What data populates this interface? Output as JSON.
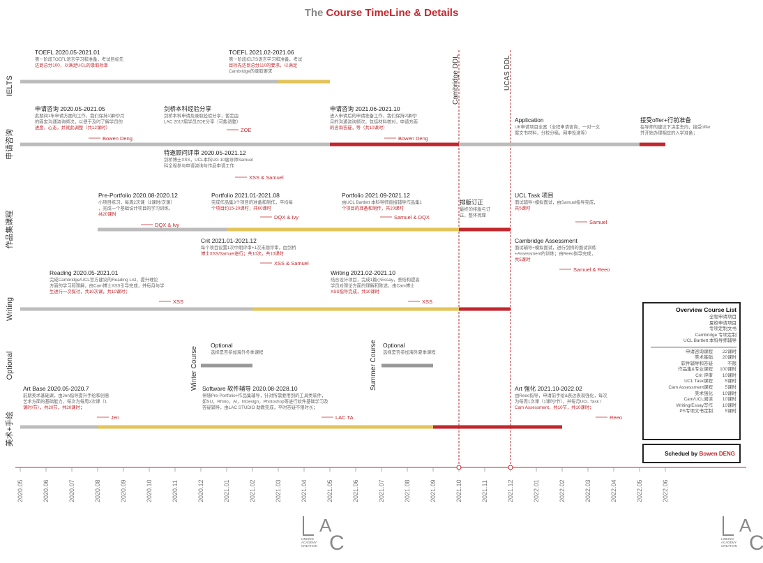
{
  "title": {
    "part1": "The ",
    "part2": "Course TimeLine & Details"
  },
  "chart_data": {
    "type": "gantt",
    "months": [
      "2020.05",
      "2020.06",
      "2020.07",
      "2020.08",
      "2020.09",
      "2020.10",
      "2020.11",
      "2020.12",
      "2021.01",
      "2021.02",
      "2021.03",
      "2021.04",
      "2021.05",
      "2021.06",
      "2021.07",
      "2021.08",
      "2021.09",
      "2021.10",
      "2021.11",
      "2021.12",
      "2022.01",
      "2022.02",
      "2022.03",
      "2022.04",
      "2022.05",
      "2022.06"
    ],
    "deadlines": [
      {
        "label": "Cambridge DDL",
        "date": "2021.10"
      },
      {
        "label": "UCAS DDL",
        "date": "2021.12"
      }
    ],
    "rows": [
      {
        "label": "IELTS",
        "segments": [
          {
            "start": "2020.05",
            "end": "2021.03",
            "color": "#bcbcbc"
          },
          {
            "start": "2021.03",
            "end": "2021.05",
            "color": "#e3c45a"
          }
        ]
      },
      {
        "label": "申请咨询",
        "segments": [
          {
            "start": "2020.05",
            "end": "2021.05",
            "color": "#bcbcbc"
          },
          {
            "start": "2021.05",
            "end": "2021.10",
            "color": "#c1272d"
          },
          {
            "start": "2021.10",
            "end": "2022.05",
            "color": "#bcbcbc"
          },
          {
            "start": "2022.05",
            "end": "2022.06",
            "color": "#c1272d"
          }
        ]
      },
      {
        "label": "作品集课程",
        "segments": [
          {
            "start": "2020.08",
            "end": "2021.01",
            "color": "#bcbcbc"
          },
          {
            "start": "2021.01",
            "end": "2021.10",
            "color": "#e3c45a"
          },
          {
            "start": "2021.10",
            "end": "2021.12",
            "color": "#c1272d"
          }
        ]
      },
      {
        "label": "Writing",
        "segments": [
          {
            "start": "2020.05",
            "end": "2021.02",
            "color": "#bcbcbc"
          },
          {
            "start": "2021.02",
            "end": "2021.10",
            "color": "#e3c45a"
          },
          {
            "start": "2021.10",
            "end": "2021.12",
            "color": "#c1272d"
          }
        ]
      },
      {
        "label": "Optional",
        "segments": [
          {
            "start": "2020.12",
            "end": "2021.02",
            "color": "#999999"
          },
          {
            "start": "2021.07",
            "end": "2021.09",
            "color": "#999999"
          }
        ]
      },
      {
        "label": "美术+手绘",
        "segments": [
          {
            "start": "2020.05",
            "end": "2020.08",
            "color": "#bcbcbc"
          },
          {
            "start": "2020.08",
            "end": "2021.09",
            "color": "#e3c45a"
          },
          {
            "start": "2021.09",
            "end": "2022.02",
            "color": "#c1272d"
          }
        ]
      }
    ],
    "notes": [
      {
        "title": "TOEFL  2020.05-2021.01",
        "lines": [
          "第一阶段TOEFL语言学习和准备，考试目标先",
          "达到总分100，以满足UCL的录取标准"
        ],
        "red": [
          1
        ]
      },
      {
        "title": "TOEFL  2021.02-2021.06",
        "lines": [
          "第一阶段IELTS语言学习和准备，考试",
          "目标先达到总分110的要求，以满足",
          "Cambridge的录取要求"
        ],
        "red": [
          1
        ]
      },
      {
        "title": "申请咨询  2020.05-2021.05",
        "lines": [
          "此期间1年申请方面的工作，我们保持1课时/月",
          "的固定沟通咨询频次，以便于及时了解学员的",
          "进度，心态，并就此调整（共12课时）"
        ],
        "red": [
          2
        ],
        "who": "Bowen Deng"
      },
      {
        "title": "剑桥本科经验分享",
        "lines": [
          "剑桥本科申请及录取经验分享，暂定由",
          "LAC 2017届学员ZOE分享（可能调整）"
        ],
        "who": "ZOE"
      },
      {
        "title": "申请咨询  2021.06-2021.10",
        "lines": [
          "进入申请后的申请准备工作，我们保持2课时/",
          "月的沟通咨询频次，包括材料核对，申请方面",
          "的咨询答疑，等（共10课时）"
        ],
        "red": [
          2
        ],
        "who": "Bowen Deng"
      },
      {
        "title": "Application",
        "lines": [
          "UK申请项目全案（全程申请咨询，一对一文",
          "案文书材料，分校分稿，网申投递等）"
        ]
      },
      {
        "title": "接受offer+行前准备",
        "lines": [
          "在导师的建议下决定去向，接受offer",
          "并开始办理相应的入学准备；"
        ]
      },
      {
        "title": "特邀顾问评审  2020.05-2021.12",
        "lines": [
          "剑桥博士XSS，UCL本科UG 10届导师Samuel",
          "科全程参与申请咨询与作品申请工作"
        ],
        "who": "XSS & Samuel"
      },
      {
        "title": "Pre-Portfolio  2020.08-2020.12",
        "lines": [
          "小项目练习，每周2次课（1课时/次课）",
          "，完成一个基础设计项目的学习训练，",
          "共20课时"
        ],
        "red": [
          2
        ],
        "who": "DQX & Ivy"
      },
      {
        "title": "Portfolio  2021.01-2021.08",
        "lines": [
          "完成作品集3个项目的准备和制作，平均每",
          "个项目约15-20课时，共60课时"
        ],
        "red": [
          1
        ],
        "who": "DQX & Ivy"
      },
      {
        "title": "Portfolio  2021.09-2021.12",
        "lines": [
          "由UCL Bartlett 本科导师直接辅导作品集1",
          "个项目的准备和制作，共20课时"
        ],
        "red": [
          1
        ],
        "who": "Samuel & DQX"
      },
      {
        "title": "排版订正",
        "lines": [
          "最终的排版与订",
          "正，整体梳理"
        ]
      },
      {
        "title": "UCL Task 项目",
        "lines": [
          "面试辅导+模拟面试，由Samuel指导完成，",
          "共5课时"
        ],
        "red": [
          1
        ],
        "who": "Samuel"
      },
      {
        "title": "Crit  2021.01-2021.12",
        "lines": [
          "每个项目设置1次中期评审+1次末期评审，由剑桥",
          "博士XSS/Samuel进行；共10次，共10课时"
        ],
        "red": [
          1
        ],
        "who": "XSS & Samuel"
      },
      {
        "title": "Cambridge Assessment",
        "lines": [
          "面试辅导+模拟面试，进行剑桥的面试训练",
          "+Assessment的训练；由Reeo指导完成，",
          "共5课时"
        ],
        "red": [
          2
        ],
        "who": "Samuel & Reeo"
      },
      {
        "title": "Reading  2020.05-2021.01",
        "lines": [
          "完成Cambridge/UCL官方建议的Reading List，提升理论",
          "方面的学习和理解，由Cam博士XSS引导完成，并每月与学",
          "生进行一次探讨，共10次课，共10课时；"
        ],
        "red": [
          2
        ],
        "who": "XSS"
      },
      {
        "title": "Writing  2021.02-2021.10",
        "lines": [
          "结合设计项目，完成1篇小Essay，丢结构提高",
          "学员对理论方面的理解和陈述，由Cam博士",
          "XSS指导完成，共10课时"
        ],
        "red": [
          2
        ],
        "who": "XSS"
      },
      {
        "title": "Optional",
        "lines": [
          "选择是否参加海外冬季课程"
        ]
      },
      {
        "title": "Optional",
        "lines": [
          "选择是否参加海外夏季课程"
        ]
      },
      {
        "title": "Art Base  2020.05-2020.7",
        "lines": [
          "前期美术基础课，由Jen指导提升手绘和创意",
          "艺术方面的基础能力，每次为每周2次课（1",
          "课时/节），共20节，共20课时；"
        ],
        "red": [
          2
        ],
        "who": "Jen"
      },
      {
        "title": "Software 软件辅导  2020.08-2028.10",
        "lines": [
          "伴随Pre-Portfolio+作品集辅导，针对所需要用到的工具类软件，",
          "如SU，Rhino，AI，InDesign，Photoshop等进行软件基础学习及",
          "答疑辅导，由LAC STUDIO 助教完成，平时答疑不限时长；"
        ],
        "who": "LAC TA"
      },
      {
        "title": "Art 强化  2021.10-2022.02",
        "lines": [
          "由Reeo指导，申请前手绘&表达表现强化，每次",
          "为每周1次课（1课时/节），并每月UCL Task /",
          "Cam Assessment，共10节，共10课时；"
        ],
        "red": [
          2
        ],
        "who": "Reeo"
      }
    ],
    "side_labels": [
      "Winter Course",
      "Summer Course"
    ]
  },
  "overview": {
    "title": "Overview Course List",
    "intro": [
      "全程申请项目",
      "夏校申请项目",
      "专项定制文书",
      "Cambridge 专项定制",
      "UCL Bartlett 本科导师辅导"
    ],
    "items": [
      {
        "name": "申请咨询课程",
        "value": "22课时"
      },
      {
        "name": "美术基础",
        "value": "20课时"
      },
      {
        "name": "软件辅导和答疑",
        "value": "不限"
      },
      {
        "name": "作品集&专业课程",
        "value": "100课时"
      },
      {
        "name": "Crit 评审",
        "value": "10课时"
      },
      {
        "name": "UCL Task课程",
        "value": "5课时"
      },
      {
        "name": "Cam Assessment课程",
        "value": "5课时"
      },
      {
        "name": "美术强化",
        "value": "10课时"
      },
      {
        "name": "Cam/UCL阅读",
        "value": "10课时"
      },
      {
        "name": "Writing/Essay写作",
        "value": "10课时"
      },
      {
        "name": "PS专项文书定制",
        "value": "5课时"
      }
    ]
  },
  "schedule": {
    "prefix": "Scheduel by ",
    "name": "Bowen DENG"
  },
  "logo": {
    "lines": [
      "LINKING",
      "ACADEMY",
      "CREATION"
    ]
  }
}
